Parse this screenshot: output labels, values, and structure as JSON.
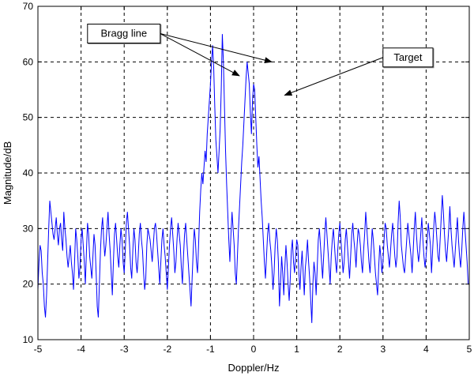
{
  "chart_data": {
    "type": "line",
    "title": "",
    "xlabel": "Doppler/Hz",
    "ylabel": "Magnitude/dB",
    "xlim": [
      -5,
      5
    ],
    "ylim": [
      10,
      70
    ],
    "xticks": [
      -5,
      -4,
      -3,
      -2,
      -1,
      0,
      1,
      2,
      3,
      4,
      5
    ],
    "yticks": [
      10,
      20,
      30,
      40,
      50,
      60,
      70
    ],
    "grid": true,
    "grid_style": "dashed",
    "line_color": "#0000ff",
    "sample_step": 0.025,
    "series": [
      {
        "values": [
          19,
          24,
          27,
          26,
          22,
          20,
          16,
          14,
          18,
          24,
          30,
          35,
          33,
          31,
          29,
          28,
          30,
          32,
          29,
          27,
          30,
          31,
          28,
          26,
          33,
          30,
          28,
          25,
          23,
          25,
          27,
          24,
          22,
          19,
          24,
          30,
          28,
          25,
          21,
          23,
          28,
          30,
          27,
          24,
          20,
          26,
          31,
          29,
          25,
          23,
          21,
          25,
          29,
          27,
          22,
          16,
          14,
          20,
          26,
          30,
          32,
          28,
          25,
          27,
          30,
          33,
          29,
          26,
          22,
          18,
          24,
          29,
          31,
          28,
          25,
          23,
          27,
          30,
          28,
          24,
          22,
          26,
          31,
          33,
          30,
          27,
          23,
          21,
          26,
          30,
          28,
          24,
          22,
          25,
          29,
          31,
          28,
          26,
          22,
          19,
          21,
          27,
          30,
          29,
          28,
          26,
          24,
          27,
          30,
          31,
          29,
          26,
          23,
          20,
          24,
          28,
          30,
          27,
          25,
          22,
          19,
          23,
          27,
          30,
          32,
          29,
          26,
          22,
          24,
          28,
          31,
          29,
          27,
          23,
          20,
          25,
          29,
          31,
          28,
          25,
          22,
          19,
          16,
          21,
          26,
          30,
          28,
          24,
          22,
          27,
          33,
          37,
          40,
          38,
          41,
          44,
          42,
          47,
          50,
          53,
          56,
          60,
          63,
          59,
          52,
          46,
          43,
          40,
          44,
          48,
          55,
          65,
          60,
          52,
          44,
          38,
          33,
          28,
          24,
          29,
          33,
          30,
          27,
          22,
          20,
          25,
          30,
          34,
          38,
          42,
          45,
          49,
          53,
          57,
          60,
          58,
          56,
          51,
          47,
          53,
          56,
          55,
          50,
          45,
          41,
          43,
          39,
          35,
          32,
          28,
          24,
          21,
          25,
          29,
          31,
          28,
          26,
          23,
          19,
          22,
          27,
          30,
          28,
          24,
          16,
          20,
          25,
          22,
          18,
          23,
          27,
          24,
          20,
          17,
          21,
          26,
          28,
          24,
          22,
          25,
          28,
          27,
          22,
          19,
          23,
          26,
          22,
          18,
          23,
          25,
          28,
          24,
          21,
          17,
          13,
          20,
          24,
          22,
          18,
          23,
          28,
          30,
          27,
          24,
          21,
          25,
          29,
          32,
          29,
          26,
          23,
          20,
          25,
          28,
          30,
          27,
          24,
          22,
          26,
          29,
          31,
          28,
          25,
          22,
          24,
          28,
          30,
          27,
          24,
          21,
          25,
          29,
          31,
          28,
          26,
          23,
          27,
          30,
          29,
          27,
          24,
          22,
          26,
          29,
          33,
          30,
          27,
          24,
          22,
          26,
          30,
          28,
          25,
          22,
          20,
          18,
          23,
          27,
          25,
          22,
          24,
          28,
          31,
          30,
          27,
          25,
          23,
          26,
          29,
          31,
          28,
          25,
          23,
          25,
          31,
          35,
          32,
          27,
          25,
          23,
          22,
          25,
          28,
          31,
          29,
          27,
          25,
          22,
          26,
          30,
          33,
          29,
          26,
          24,
          26,
          29,
          32,
          28,
          25,
          23,
          25,
          28,
          31,
          29,
          27,
          22,
          26,
          30,
          33,
          31,
          28,
          25,
          24,
          28,
          32,
          36,
          33,
          29,
          26,
          24,
          27,
          30,
          34,
          30,
          27,
          25,
          23,
          26,
          29,
          32,
          28,
          25,
          23,
          26,
          30,
          33,
          30,
          27,
          24,
          20
        ]
      }
    ],
    "annotations": [
      {
        "text": "Bragg line",
        "box_x": -3.85,
        "box_y": 66.8,
        "targets": [
          [
            -0.33,
            57.5
          ],
          [
            0.42,
            60
          ]
        ]
      },
      {
        "text": "Target",
        "box_x": 3.0,
        "box_y": 62.5,
        "targets": [
          [
            0.72,
            54
          ]
        ]
      }
    ]
  }
}
